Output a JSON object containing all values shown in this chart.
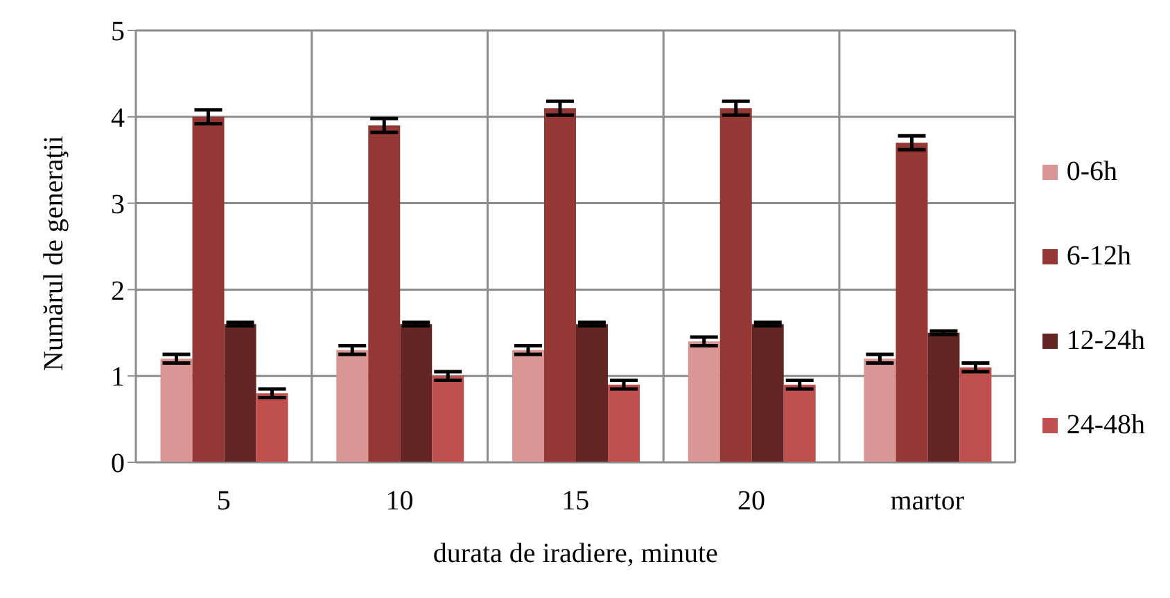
{
  "chart_data": {
    "type": "bar",
    "categories": [
      "5",
      "10",
      "15",
      "20",
      "martor"
    ],
    "series": [
      {
        "name": "0-6h",
        "color": "#d99694",
        "values": [
          1.2,
          1.3,
          1.3,
          1.4,
          1.2
        ],
        "errors": [
          0.05,
          0.05,
          0.05,
          0.05,
          0.05
        ]
      },
      {
        "name": "6-12h",
        "color": "#953735",
        "values": [
          4.0,
          3.9,
          4.1,
          4.1,
          3.7
        ],
        "errors": [
          0.08,
          0.08,
          0.08,
          0.08,
          0.08
        ]
      },
      {
        "name": "12-24h",
        "color": "#632523",
        "values": [
          1.6,
          1.6,
          1.6,
          1.6,
          1.5
        ],
        "errors": [
          0.02,
          0.02,
          0.02,
          0.02,
          0.02
        ]
      },
      {
        "name": "24-48h",
        "color": "#c0504d",
        "values": [
          0.8,
          1.0,
          0.9,
          0.9,
          1.1
        ],
        "errors": [
          0.05,
          0.05,
          0.05,
          0.05,
          0.05
        ]
      }
    ],
    "ylim": [
      0,
      5
    ],
    "yticks": [
      0,
      1,
      2,
      3,
      4,
      5
    ],
    "ylabel": "Numărul de generaţii",
    "xlabel": "durata de iradiere, minute",
    "grid": true,
    "legend": "right"
  }
}
